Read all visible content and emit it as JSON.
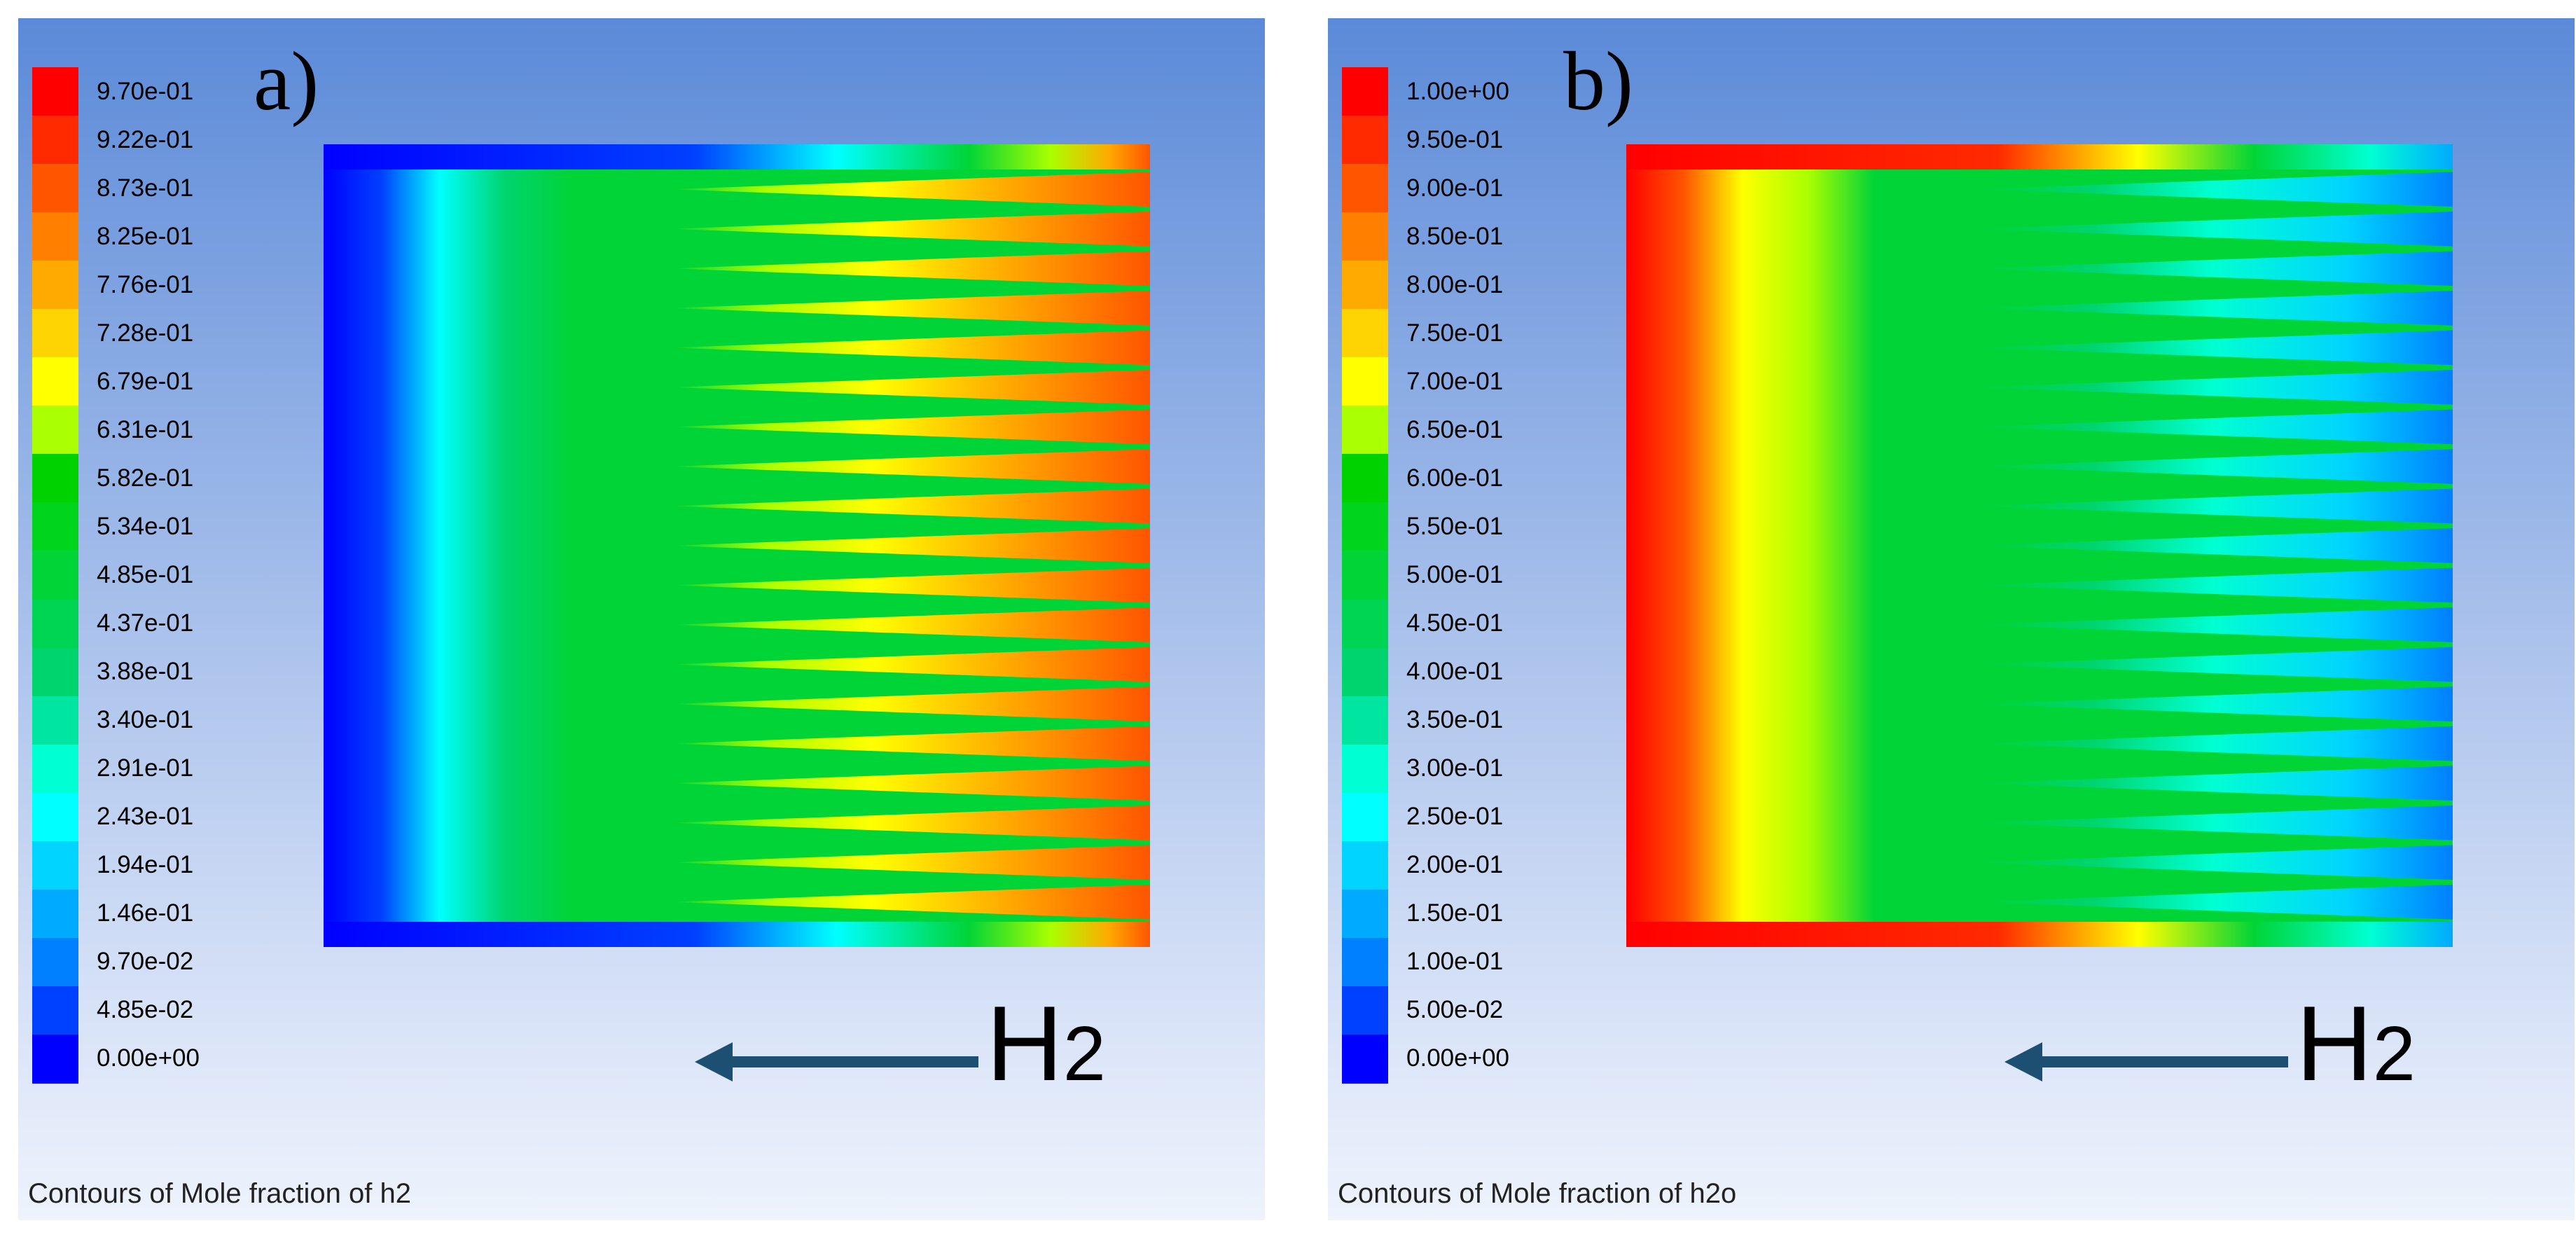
{
  "panels": [
    {
      "letter": "a)",
      "footer": "Contours of Mole fraction of h2",
      "species": {
        "main": "H",
        "sub": "2"
      },
      "legend": {
        "labels": [
          "9.70e-01",
          "9.22e-01",
          "8.73e-01",
          "8.25e-01",
          "7.76e-01",
          "7.28e-01",
          "6.79e-01",
          "6.31e-01",
          "5.82e-01",
          "5.34e-01",
          "4.85e-01",
          "4.37e-01",
          "3.88e-01",
          "3.40e-01",
          "2.91e-01",
          "2.43e-01",
          "1.94e-01",
          "1.46e-01",
          "9.70e-02",
          "4.85e-02",
          "0.00e+00"
        ],
        "colors": [
          "#ff0000",
          "#ff2a00",
          "#ff5500",
          "#ff7f00",
          "#ffaa00",
          "#ffd400",
          "#ffff00",
          "#aaff00",
          "#00d200",
          "#00d41c",
          "#00d437",
          "#00d453",
          "#00d46e",
          "#00e6a0",
          "#00ffd2",
          "#00ffff",
          "#00d4ff",
          "#00aaff",
          "#007fff",
          "#0040ff",
          "#0000ff"
        ]
      }
    },
    {
      "letter": "b)",
      "footer": "Contours of Mole fraction of h2o",
      "species": {
        "main": "H",
        "sub": "2"
      },
      "legend": {
        "labels": [
          "1.00e+00",
          "9.50e-01",
          "9.00e-01",
          "8.50e-01",
          "8.00e-01",
          "7.50e-01",
          "7.00e-01",
          "6.50e-01",
          "6.00e-01",
          "5.50e-01",
          "5.00e-01",
          "4.50e-01",
          "4.00e-01",
          "3.50e-01",
          "3.00e-01",
          "2.50e-01",
          "2.00e-01",
          "1.50e-01",
          "1.00e-01",
          "5.00e-02",
          "0.00e+00"
        ],
        "colors": [
          "#ff0000",
          "#ff2a00",
          "#ff5500",
          "#ff7f00",
          "#ffaa00",
          "#ffd400",
          "#ffff00",
          "#aaff00",
          "#00d200",
          "#00d41c",
          "#00d437",
          "#00d453",
          "#00d46e",
          "#00e6a0",
          "#00ffd2",
          "#00ffff",
          "#00d4ff",
          "#00aaff",
          "#007fff",
          "#0040ff",
          "#0000ff"
        ]
      }
    }
  ],
  "chart_data": [
    {
      "type": "heatmap",
      "title": "Contours of Mole fraction of h2",
      "quantity": "Mole fraction of h2",
      "colorbar_range": [
        0.0,
        0.97
      ],
      "flow_direction": "right-to-left",
      "flow_label": "H2",
      "channels": 19,
      "inlet_value": 0.97,
      "outlet_value": 0.0
    },
    {
      "type": "heatmap",
      "title": "Contours of Mole fraction of h2o",
      "quantity": "Mole fraction of h2o",
      "colorbar_range": [
        0.0,
        1.0
      ],
      "flow_direction": "right-to-left",
      "flow_label": "H2",
      "channels": 19,
      "inlet_value": 0.0,
      "outlet_value": 1.0
    }
  ]
}
